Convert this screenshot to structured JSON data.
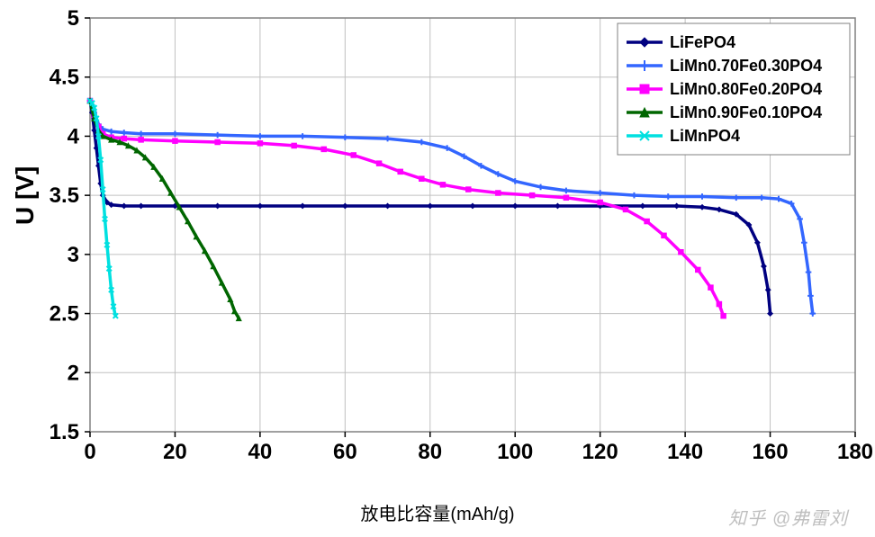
{
  "chart": {
    "type": "line",
    "background_color": "#ffffff",
    "plot_border_color": "#808080",
    "grid_color": "#c0c0c0",
    "grid_on": true,
    "xlabel": "放电比容量(mAh/g)",
    "ylabel": "U [V]",
    "xlabel_fontsize": 20,
    "ylabel_fontsize": 28,
    "tick_fontsize": 24,
    "xlim": [
      0,
      180
    ],
    "ylim": [
      1.5,
      5
    ],
    "xtick_step": 20,
    "ytick_step": 0.5,
    "xticks": [
      0,
      20,
      40,
      60,
      80,
      100,
      120,
      140,
      160,
      180
    ],
    "yticks": [
      1.5,
      2,
      2.5,
      3,
      3.5,
      4,
      4.5,
      5
    ],
    "line_width": 3.5,
    "legend": {
      "position": "top-right",
      "border_color": "#808080",
      "bg_color": "#ffffff",
      "fontsize": 18
    },
    "series": [
      {
        "name": "LiFePO4",
        "color": "#000080",
        "marker": "diamond",
        "marker_size": 5,
        "data": [
          [
            0,
            4.3
          ],
          [
            0.5,
            4.2
          ],
          [
            1,
            4.05
          ],
          [
            1.5,
            3.9
          ],
          [
            2,
            3.75
          ],
          [
            2.5,
            3.6
          ],
          [
            3,
            3.5
          ],
          [
            4,
            3.44
          ],
          [
            5,
            3.42
          ],
          [
            8,
            3.41
          ],
          [
            12,
            3.41
          ],
          [
            20,
            3.41
          ],
          [
            30,
            3.41
          ],
          [
            40,
            3.41
          ],
          [
            50,
            3.41
          ],
          [
            60,
            3.41
          ],
          [
            70,
            3.41
          ],
          [
            80,
            3.41
          ],
          [
            90,
            3.41
          ],
          [
            100,
            3.41
          ],
          [
            110,
            3.41
          ],
          [
            120,
            3.41
          ],
          [
            130,
            3.41
          ],
          [
            138,
            3.41
          ],
          [
            144,
            3.4
          ],
          [
            148,
            3.38
          ],
          [
            152,
            3.34
          ],
          [
            155,
            3.25
          ],
          [
            157,
            3.1
          ],
          [
            158.5,
            2.9
          ],
          [
            159.5,
            2.7
          ],
          [
            160,
            2.5
          ]
        ]
      },
      {
        "name": "LiMn0.70Fe0.30PO4",
        "color": "#3366ff",
        "marker": "plus",
        "marker_size": 6,
        "data": [
          [
            0,
            4.3
          ],
          [
            1,
            4.2
          ],
          [
            2,
            4.1
          ],
          [
            3,
            4.06
          ],
          [
            5,
            4.04
          ],
          [
            8,
            4.03
          ],
          [
            12,
            4.02
          ],
          [
            20,
            4.02
          ],
          [
            30,
            4.01
          ],
          [
            40,
            4.0
          ],
          [
            50,
            4.0
          ],
          [
            60,
            3.99
          ],
          [
            70,
            3.98
          ],
          [
            78,
            3.95
          ],
          [
            84,
            3.9
          ],
          [
            88,
            3.83
          ],
          [
            92,
            3.75
          ],
          [
            96,
            3.68
          ],
          [
            100,
            3.62
          ],
          [
            106,
            3.57
          ],
          [
            112,
            3.54
          ],
          [
            120,
            3.52
          ],
          [
            128,
            3.5
          ],
          [
            136,
            3.49
          ],
          [
            144,
            3.49
          ],
          [
            152,
            3.48
          ],
          [
            158,
            3.48
          ],
          [
            162,
            3.47
          ],
          [
            165,
            3.43
          ],
          [
            167,
            3.3
          ],
          [
            168,
            3.1
          ],
          [
            169,
            2.85
          ],
          [
            169.5,
            2.65
          ],
          [
            170,
            2.5
          ]
        ]
      },
      {
        "name": "LiMn0.80Fe0.20PO4",
        "color": "#ff00ff",
        "marker": "square",
        "marker_size": 5,
        "data": [
          [
            0,
            4.3
          ],
          [
            1,
            4.18
          ],
          [
            2,
            4.08
          ],
          [
            3,
            4.02
          ],
          [
            5,
            3.99
          ],
          [
            8,
            3.98
          ],
          [
            12,
            3.97
          ],
          [
            20,
            3.96
          ],
          [
            30,
            3.95
          ],
          [
            40,
            3.94
          ],
          [
            48,
            3.92
          ],
          [
            55,
            3.89
          ],
          [
            62,
            3.84
          ],
          [
            68,
            3.77
          ],
          [
            73,
            3.7
          ],
          [
            78,
            3.64
          ],
          [
            83,
            3.59
          ],
          [
            89,
            3.55
          ],
          [
            96,
            3.52
          ],
          [
            104,
            3.5
          ],
          [
            112,
            3.48
          ],
          [
            120,
            3.44
          ],
          [
            126,
            3.38
          ],
          [
            131,
            3.28
          ],
          [
            135,
            3.16
          ],
          [
            139,
            3.02
          ],
          [
            143,
            2.87
          ],
          [
            146,
            2.72
          ],
          [
            148,
            2.58
          ],
          [
            149,
            2.48
          ]
        ]
      },
      {
        "name": "LiMn0.90Fe0.10PO4",
        "color": "#006600",
        "marker": "triangle",
        "marker_size": 5,
        "data": [
          [
            0,
            4.3
          ],
          [
            1,
            4.15
          ],
          [
            2,
            4.05
          ],
          [
            3,
            4.0
          ],
          [
            5,
            3.97
          ],
          [
            7,
            3.95
          ],
          [
            9,
            3.92
          ],
          [
            11,
            3.88
          ],
          [
            13,
            3.82
          ],
          [
            15,
            3.74
          ],
          [
            17,
            3.64
          ],
          [
            19,
            3.52
          ],
          [
            21,
            3.4
          ],
          [
            23,
            3.28
          ],
          [
            25,
            3.15
          ],
          [
            27,
            3.03
          ],
          [
            29,
            2.9
          ],
          [
            31,
            2.76
          ],
          [
            33,
            2.62
          ],
          [
            34,
            2.52
          ],
          [
            35,
            2.46
          ]
        ]
      },
      {
        "name": "LiMnPO4",
        "color": "#00e0e0",
        "marker": "x",
        "marker_size": 5,
        "data": [
          [
            0,
            4.3
          ],
          [
            0.5,
            4.28
          ],
          [
            1,
            4.24
          ],
          [
            1.5,
            4.15
          ],
          [
            2,
            4.0
          ],
          [
            2.5,
            3.8
          ],
          [
            3,
            3.55
          ],
          [
            3.5,
            3.3
          ],
          [
            4,
            3.08
          ],
          [
            4.5,
            2.88
          ],
          [
            5,
            2.7
          ],
          [
            5.5,
            2.56
          ],
          [
            6,
            2.48
          ]
        ]
      }
    ],
    "watermark": "知乎 @弗雷刘"
  }
}
